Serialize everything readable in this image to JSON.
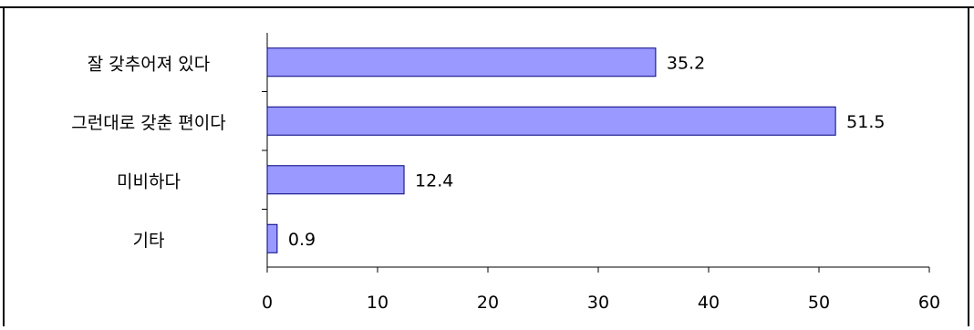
{
  "chart_data": {
    "type": "bar",
    "orientation": "horizontal",
    "categories": [
      "잘 갖추어져 있다",
      "그런대로 갖춘 편이다",
      "미비하다",
      "기타"
    ],
    "values": [
      35.2,
      51.5,
      12.4,
      0.9
    ],
    "data_labels": [
      "35.2",
      "51.5",
      "12.4",
      "0.9"
    ],
    "xlim": [
      0,
      60
    ],
    "x_ticks": [
      0,
      10,
      20,
      30,
      40,
      50,
      60
    ],
    "title": "",
    "xlabel": "",
    "ylabel": "",
    "grid": false,
    "legend": "none",
    "colors": {
      "bar_fill": "#9999ff",
      "bar_stroke": "#000080",
      "axis": "#000000",
      "frame": "#000000",
      "text": "#000000"
    }
  }
}
